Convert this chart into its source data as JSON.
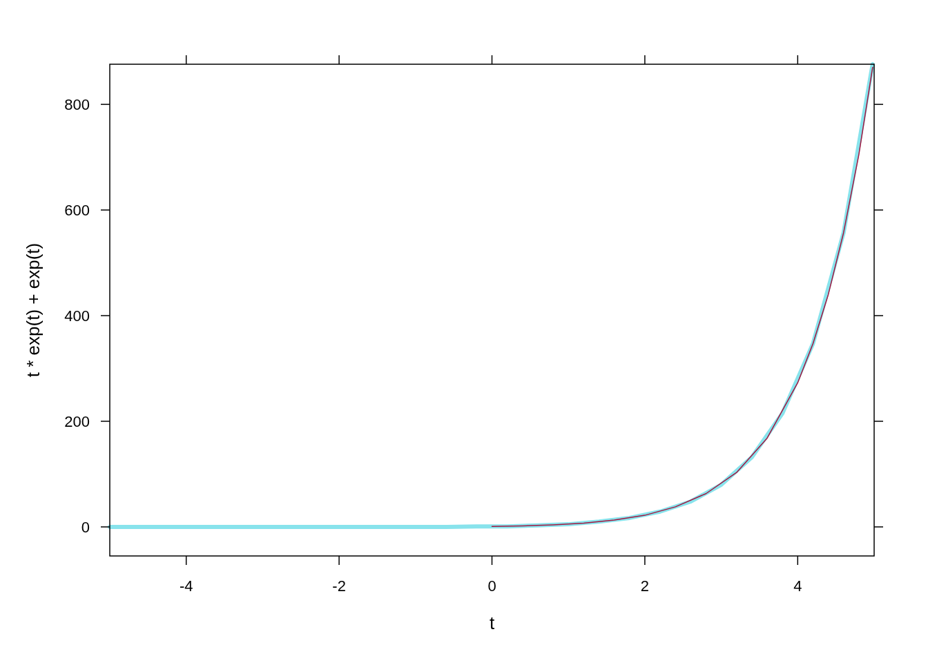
{
  "chart_data": {
    "type": "line",
    "xlabel": "t",
    "ylabel": "t * exp(t) + exp(t)",
    "xlim": [
      -5,
      5
    ],
    "ylim": [
      -55,
      876
    ],
    "xticks": [
      -4,
      -2,
      0,
      2,
      4
    ],
    "yticks": [
      0,
      200,
      400,
      600,
      800
    ],
    "marker": "none",
    "line_style": "solid",
    "series": [
      {
        "color": "#88e3ec",
        "x": [
          -5,
          -4.6,
          -4.2,
          -3.8,
          -3.4,
          -3,
          -2.6,
          -2.2,
          -1.8,
          -1.4,
          -1,
          -0.6,
          -0.2,
          0.2,
          0.6,
          1,
          1.4,
          1.8,
          2.2,
          2.6,
          3,
          3.4,
          3.8,
          4.2,
          4.6,
          4.98
        ],
        "values": [
          0,
          0,
          0,
          0,
          0,
          0,
          0,
          0,
          0,
          0,
          0,
          0,
          1,
          1,
          3,
          5,
          10,
          17,
          29,
          48,
          80,
          132,
          215,
          347,
          557,
          876
        ]
      },
      {
        "color": "#a4163f",
        "x": [
          0,
          0.4,
          0.8,
          1.2,
          1.6,
          2,
          2.4,
          2.8,
          3.2,
          3.6,
          4,
          4.2,
          4.4,
          4.6,
          4.8,
          4.98
        ],
        "values": [
          1,
          2,
          4,
          7,
          13,
          22,
          38,
          63,
          103,
          168,
          273,
          347,
          440,
          557,
          705,
          870
        ]
      }
    ]
  }
}
